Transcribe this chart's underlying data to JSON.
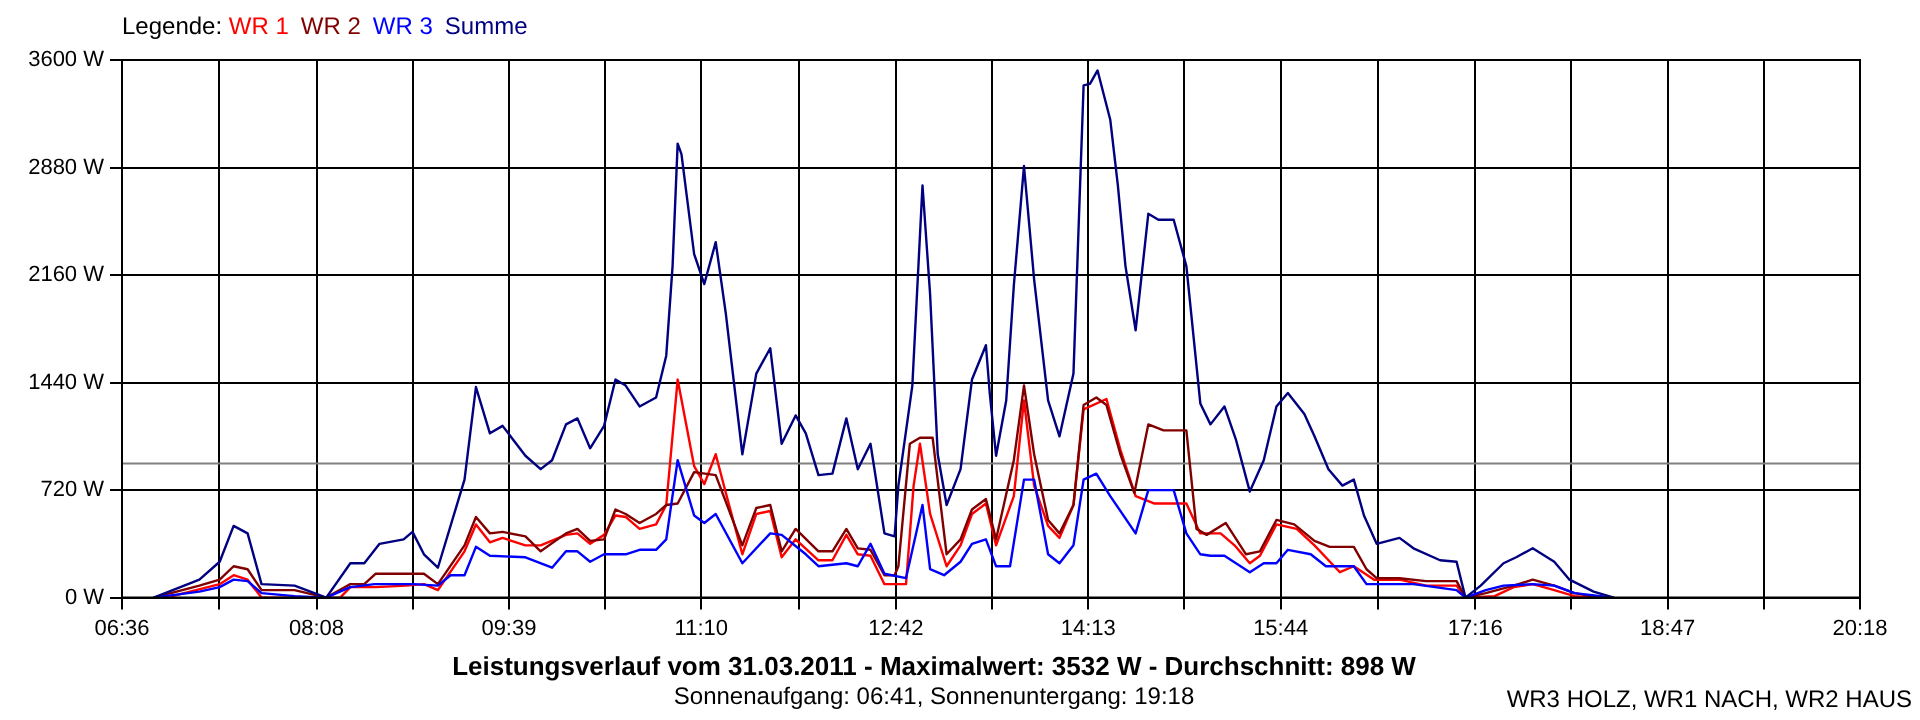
{
  "chart_data": {
    "type": "line",
    "title": "Leistungsverlauf vom 31.03.2011 - Maximalwert: 3532 W - Durchschnitt: 898 W",
    "subtitle": "Sonnenaufgang: 06:41, Sonnenuntergang: 19:18",
    "annotations": [
      "WR3 HOLZ, WR1 NACH, WR2 HAUS"
    ],
    "legend_title": "Legende:",
    "legend": "top left",
    "grid": true,
    "xlim": [
      6.6,
      20.3
    ],
    "xticks": [
      {
        "value": 6.6,
        "label": "06:36"
      },
      {
        "value": 7.3667,
        "label": null
      },
      {
        "value": 8.1333,
        "label": "08:08"
      },
      {
        "value": 8.8917,
        "label": null
      },
      {
        "value": 9.65,
        "label": "09:39"
      },
      {
        "value": 10.4083,
        "label": null
      },
      {
        "value": 11.1667,
        "label": "11:10"
      },
      {
        "value": 11.9333,
        "label": null
      },
      {
        "value": 12.7,
        "label": "12:42"
      },
      {
        "value": 13.4583,
        "label": null
      },
      {
        "value": 14.2167,
        "label": "14:13"
      },
      {
        "value": 14.975,
        "label": null
      },
      {
        "value": 15.7333,
        "label": "15:44"
      },
      {
        "value": 16.5,
        "label": null
      },
      {
        "value": 17.2667,
        "label": "17:16"
      },
      {
        "value": 18.025,
        "label": null
      },
      {
        "value": 18.7833,
        "label": "18:47"
      },
      {
        "value": 19.5417,
        "label": null
      },
      {
        "value": 20.3,
        "label": "20:18"
      }
    ],
    "ylim": [
      0,
      3600
    ],
    "yticks": [
      {
        "value": 0,
        "label": "0 W"
      },
      {
        "value": 720,
        "label": "720 W"
      },
      {
        "value": 1440,
        "label": "1440 W"
      },
      {
        "value": 2160,
        "label": "2160 W"
      },
      {
        "value": 2880,
        "label": "2880 W"
      },
      {
        "value": 3600,
        "label": "3600 W"
      }
    ],
    "ref_lines": [
      {
        "axis": "y",
        "value": 898,
        "color": "#808080"
      }
    ],
    "series": [
      {
        "name": "WR 1",
        "color": "#ff0000",
        "x": [
          6.95,
          7.37,
          7.48,
          7.59,
          7.7,
          7.96,
          8.32,
          8.4,
          8.6,
          8.84,
          8.98,
          9.09,
          9.3,
          9.39,
          9.5,
          9.6,
          9.78,
          9.9,
          10.1,
          10.19,
          10.29,
          10.4,
          10.49,
          10.57,
          10.68,
          10.81,
          10.89,
          10.98,
          11.11,
          11.19,
          11.28,
          11.36,
          11.49,
          11.6,
          11.71,
          11.8,
          11.91,
          12.09,
          12.2,
          12.31,
          12.4,
          12.5,
          12.61,
          12.78,
          12.84,
          12.89,
          12.97,
          13.1,
          13.21,
          13.3,
          13.41,
          13.49,
          13.63,
          13.71,
          13.79,
          13.9,
          13.99,
          14.1,
          14.18,
          14.36,
          14.47,
          14.59,
          14.74,
          14.99,
          15.1,
          15.26,
          15.37,
          15.49,
          15.57,
          15.7,
          15.86,
          16.0,
          16.2,
          16.31,
          16.47,
          16.67,
          16.88,
          17.12,
          17.19,
          17.42,
          17.57,
          17.72,
          17.89,
          18.05,
          18.2
        ],
        "values": [
          0,
          90,
          150,
          120,
          0,
          0,
          0,
          70,
          70,
          80,
          90,
          50,
          310,
          490,
          370,
          400,
          350,
          350,
          420,
          430,
          360,
          420,
          550,
          540,
          460,
          490,
          620,
          1460,
          880,
          760,
          960,
          700,
          290,
          560,
          580,
          270,
          390,
          250,
          250,
          420,
          290,
          280,
          90,
          90,
          750,
          1030,
          560,
          210,
          350,
          560,
          630,
          350,
          680,
          1320,
          750,
          480,
          400,
          620,
          1260,
          1330,
          990,
          680,
          630,
          630,
          430,
          430,
          350,
          230,
          280,
          490,
          460,
          350,
          170,
          210,
          120,
          120,
          80,
          80,
          0,
          10,
          70,
          90,
          50,
          10,
          0
        ]
      },
      {
        "name": "WR 2",
        "color": "#800000",
        "x": [
          6.85,
          7.21,
          7.37,
          7.48,
          7.59,
          7.7,
          7.96,
          8.21,
          8.4,
          8.51,
          8.6,
          8.84,
          8.98,
          9.09,
          9.3,
          9.39,
          9.5,
          9.6,
          9.78,
          9.9,
          10.1,
          10.19,
          10.29,
          10.4,
          10.49,
          10.57,
          10.68,
          10.81,
          10.89,
          10.98,
          11.11,
          11.28,
          11.49,
          11.6,
          11.71,
          11.8,
          11.91,
          12.09,
          12.2,
          12.31,
          12.4,
          12.5,
          12.61,
          12.69,
          12.72,
          12.81,
          12.89,
          12.99,
          13.1,
          13.21,
          13.3,
          13.41,
          13.49,
          13.63,
          13.71,
          13.79,
          13.9,
          13.99,
          14.1,
          14.18,
          14.28,
          14.36,
          14.47,
          14.58,
          14.69,
          14.81,
          14.99,
          15.07,
          15.15,
          15.3,
          15.46,
          15.57,
          15.7,
          15.84,
          16.0,
          16.12,
          16.31,
          16.41,
          16.49,
          16.67,
          16.88,
          17.12,
          17.19,
          17.35,
          17.57,
          17.72,
          17.89,
          18.05,
          18.25
        ],
        "values": [
          0,
          80,
          120,
          210,
          190,
          50,
          50,
          0,
          90,
          90,
          160,
          160,
          160,
          90,
          350,
          540,
          430,
          440,
          410,
          310,
          430,
          460,
          380,
          390,
          590,
          560,
          500,
          560,
          620,
          630,
          840,
          820,
          350,
          600,
          620,
          310,
          460,
          310,
          310,
          460,
          330,
          320,
          150,
          150,
          210,
          1030,
          1070,
          1070,
          290,
          390,
          590,
          660,
          390,
          920,
          1420,
          960,
          520,
          430,
          620,
          1290,
          1340,
          1290,
          960,
          700,
          1160,
          1120,
          1120,
          460,
          420,
          500,
          290,
          310,
          520,
          490,
          380,
          340,
          340,
          190,
          130,
          130,
          110,
          110,
          0,
          30,
          80,
          120,
          80,
          30,
          0
        ]
      },
      {
        "name": "WR 3",
        "color": "#0000ff",
        "x": [
          6.85,
          7.21,
          7.37,
          7.48,
          7.59,
          7.7,
          7.96,
          8.21,
          8.4,
          8.59,
          8.9,
          9.09,
          9.19,
          9.3,
          9.39,
          9.5,
          9.78,
          9.99,
          10.1,
          10.19,
          10.29,
          10.4,
          10.57,
          10.68,
          10.81,
          10.89,
          10.98,
          11.11,
          11.19,
          11.28,
          11.49,
          11.71,
          11.8,
          11.99,
          12.09,
          12.31,
          12.4,
          12.5,
          12.61,
          12.78,
          12.91,
          12.97,
          13.08,
          13.21,
          13.3,
          13.41,
          13.49,
          13.6,
          13.71,
          13.79,
          13.9,
          13.99,
          14.1,
          14.18,
          14.28,
          14.39,
          14.59,
          14.69,
          14.89,
          14.99,
          15.1,
          15.18,
          15.29,
          15.49,
          15.6,
          15.7,
          15.79,
          15.97,
          16.09,
          16.31,
          16.41,
          16.67,
          16.78,
          17.12,
          17.19,
          17.35,
          17.49,
          17.72,
          17.89,
          18.05,
          18.36
        ],
        "values": [
          0,
          40,
          70,
          120,
          110,
          30,
          10,
          0,
          70,
          90,
          90,
          80,
          150,
          150,
          340,
          280,
          270,
          200,
          310,
          310,
          240,
          290,
          290,
          320,
          320,
          390,
          920,
          550,
          500,
          560,
          230,
          430,
          420,
          290,
          210,
          230,
          210,
          360,
          160,
          130,
          620,
          190,
          150,
          240,
          360,
          390,
          210,
          210,
          790,
          790,
          290,
          230,
          350,
          790,
          830,
          680,
          430,
          720,
          720,
          430,
          290,
          280,
          280,
          170,
          230,
          230,
          320,
          290,
          210,
          210,
          90,
          90,
          90,
          50,
          0,
          50,
          80,
          90,
          80,
          30,
          0
        ]
      },
      {
        "name": "Summe",
        "color": "#000080",
        "x": [
          6.85,
          7.21,
          7.37,
          7.48,
          7.59,
          7.7,
          7.96,
          8.21,
          8.4,
          8.51,
          8.63,
          8.82,
          8.89,
          8.98,
          9.09,
          9.3,
          9.39,
          9.5,
          9.6,
          9.78,
          9.9,
          9.99,
          10.1,
          10.19,
          10.29,
          10.4,
          10.49,
          10.57,
          10.68,
          10.81,
          10.89,
          10.94,
          10.98,
          11.01,
          11.11,
          11.19,
          11.28,
          11.36,
          11.49,
          11.6,
          11.71,
          11.8,
          11.91,
          11.99,
          12.09,
          12.2,
          12.31,
          12.4,
          12.5,
          12.61,
          12.69,
          12.72,
          12.83,
          12.91,
          12.97,
          13.03,
          13.1,
          13.21,
          13.3,
          13.41,
          13.44,
          13.49,
          13.57,
          13.63,
          13.71,
          13.79,
          13.9,
          13.99,
          14.1,
          14.18,
          14.23,
          14.29,
          14.39,
          14.45,
          14.51,
          14.59,
          14.69,
          14.77,
          14.89,
          14.99,
          15.1,
          15.18,
          15.29,
          15.38,
          15.49,
          15.6,
          15.7,
          15.79,
          15.92,
          16.0,
          16.11,
          16.22,
          16.31,
          16.39,
          16.49,
          16.67,
          16.78,
          16.99,
          17.12,
          17.19,
          17.31,
          17.49,
          17.59,
          17.72,
          17.89,
          18.01,
          18.2,
          18.36
        ],
        "values": [
          0,
          120,
          240,
          480,
          430,
          90,
          80,
          0,
          230,
          230,
          360,
          390,
          440,
          290,
          200,
          790,
          1410,
          1100,
          1150,
          950,
          860,
          920,
          1160,
          1200,
          1000,
          1150,
          1460,
          1420,
          1280,
          1340,
          1620,
          2220,
          3040,
          2970,
          2300,
          2100,
          2380,
          1900,
          960,
          1500,
          1670,
          1030,
          1220,
          1100,
          820,
          830,
          1200,
          860,
          1030,
          430,
          410,
          750,
          1420,
          2760,
          2030,
          960,
          620,
          860,
          1460,
          1690,
          1370,
          950,
          1320,
          2090,
          2890,
          2130,
          1320,
          1080,
          1500,
          3430,
          3440,
          3530,
          3200,
          2760,
          2220,
          1790,
          2570,
          2530,
          2530,
          2220,
          1300,
          1160,
          1280,
          1060,
          710,
          920,
          1280,
          1370,
          1230,
          1080,
          860,
          750,
          790,
          550,
          360,
          400,
          330,
          250,
          240,
          0,
          80,
          230,
          270,
          330,
          240,
          120,
          40,
          0
        ]
      }
    ]
  }
}
